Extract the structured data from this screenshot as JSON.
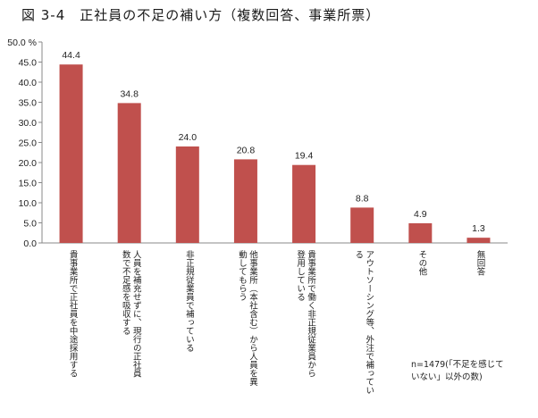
{
  "title": "図 3-4　正社員の不足の補い方（複数回答、事業所票）",
  "note": "n=1479(「不足を感じて\nいない」以外の数)",
  "colors": {
    "bar": "#c0504d",
    "axis": "#888888"
  },
  "chart_data": {
    "type": "bar",
    "categories": [
      "貴事業所で正社員を中途採用する",
      "人員を補充せずに、現行の正社員\n数で不足感を吸収する",
      "非正規従業員で補っている",
      "他事業所（本社含む）から人員を異\n動してもらう",
      "貴事業所で働く非正規従業員から\n登用している",
      "アウトソーシング等、外注で補ってい\nる",
      "その他",
      "無回答"
    ],
    "values": [
      44.4,
      34.8,
      24.0,
      20.8,
      19.4,
      8.8,
      4.9,
      1.3
    ],
    "value_labels": [
      "44.4",
      "34.8",
      "24.0",
      "20.8",
      "19.4",
      "8.8",
      "4.9",
      "1.3"
    ],
    "ylim": [
      0,
      50
    ],
    "yticks": [
      "0.0",
      "5.0",
      "10.0",
      "15.0",
      "20.0",
      "25.0",
      "30.0",
      "35.0",
      "40.0",
      "45.0",
      "50.0 %"
    ],
    "grid": false
  }
}
